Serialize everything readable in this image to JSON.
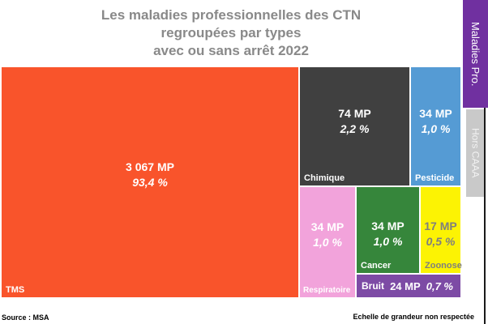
{
  "title": {
    "text": "Les maladies professionnelles des CTN\nregroupées par types\navec ou sans arrêt 2022"
  },
  "tabs": [
    {
      "id": "maladies-pro",
      "label": "Maladies Pro.",
      "color": "#7030A0",
      "text_color": "#FFFFFF",
      "active": true
    },
    {
      "id": "hors-caaa",
      "label": "Hors CAAA",
      "color": "#C9C9C9",
      "text_color": "#F2F2F2",
      "active": false
    }
  ],
  "footer": {
    "source": "Source : MSA",
    "note": "Echelle de grandeur non respectée"
  },
  "chart_data": {
    "type": "treemap",
    "title": "Les maladies professionnelles des CTN regroupées par types avec ou sans arrêt 2022",
    "unit": "MP",
    "items": [
      {
        "label": "TMS",
        "value": 3067,
        "value_label": "3 067 MP",
        "percent": 93.4,
        "percent_label": "93,4 %",
        "color": "#F9542B",
        "text_color": "#FFFFFF"
      },
      {
        "label": "Chimique",
        "value": 74,
        "value_label": "74 MP",
        "percent": 2.2,
        "percent_label": "2,2 %",
        "color": "#404040",
        "text_color": "#FFFFFF"
      },
      {
        "label": "Pesticide",
        "value": 34,
        "value_label": "34 MP",
        "percent": 1.0,
        "percent_label": "1,0 %",
        "color": "#559BD4",
        "text_color": "#FFFFFF"
      },
      {
        "label": "Respiratoire",
        "value": 34,
        "value_label": "34 MP",
        "percent": 1.0,
        "percent_label": "1,0 %",
        "color": "#F2A3DB",
        "text_color": "#FFFFFF"
      },
      {
        "label": "Cancer",
        "value": 34,
        "value_label": "34 MP",
        "percent": 1.0,
        "percent_label": "1,0 %",
        "color": "#36863B",
        "text_color": "#FFFFFF"
      },
      {
        "label": "Zoonose",
        "value": 17,
        "value_label": "17 MP",
        "percent": 0.5,
        "percent_label": "0,5 %",
        "color": "#FCF303",
        "text_color": "#7F7F7F"
      },
      {
        "label": "Bruit",
        "value": 24,
        "value_label": "24 MP",
        "percent": 0.7,
        "percent_label": "0,7 %",
        "color": "#7D4BA5",
        "text_color": "#FFFFFF"
      }
    ]
  }
}
